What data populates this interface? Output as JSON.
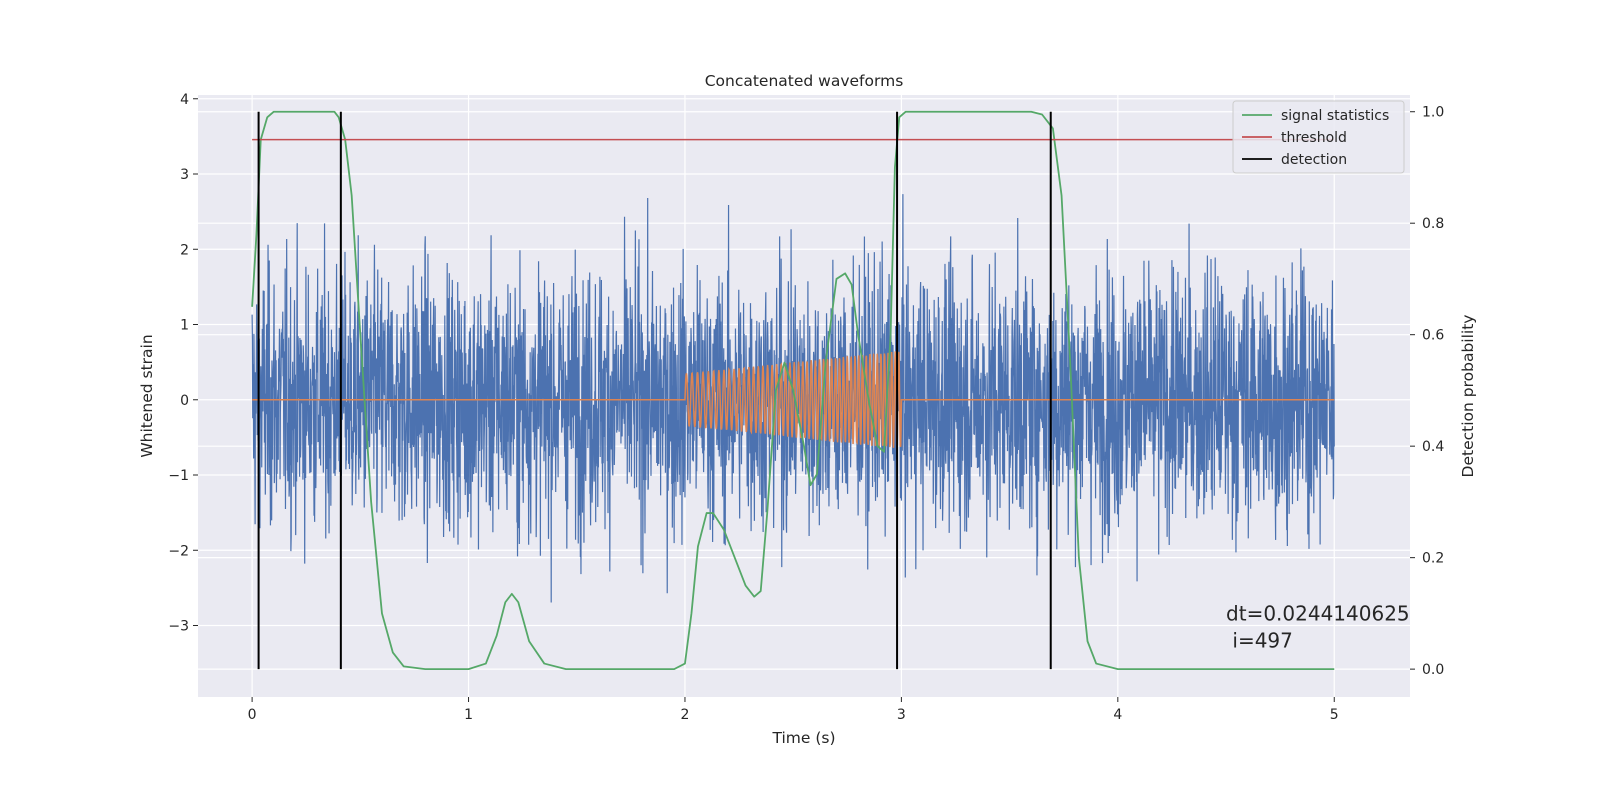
{
  "chart_data": {
    "type": "line",
    "title": "Concatenated waveforms",
    "xlabel": "Time (s)",
    "ylabel_left": "Whitened strain",
    "ylabel_right": "Detection probability",
    "xlim": [
      -0.25,
      5.35
    ],
    "ylim_left": [
      -3.95,
      4.05
    ],
    "ylim_right": [
      -0.05,
      1.03
    ],
    "x_ticks": [
      0,
      1,
      2,
      3,
      4,
      5
    ],
    "y_left_ticks": [
      -3,
      -2,
      -1,
      0,
      1,
      2,
      3,
      4
    ],
    "y_right_ticks": [
      0.0,
      0.2,
      0.4,
      0.6,
      0.8,
      1.0
    ],
    "y_left_tick_labels": [
      "−3",
      "−2",
      "−1",
      "0",
      "1",
      "2",
      "3",
      "4"
    ],
    "y_right_tick_labels": [
      "0.0",
      "0.2",
      "0.4",
      "0.6",
      "0.8",
      "1.0"
    ],
    "grid": true,
    "legend_position": "top-right",
    "style": {
      "background": "#EAEAF2",
      "grid_color": "#FFFFFF",
      "noise_color": "#4C72B0",
      "injection_color": "#DD8452",
      "signal_color": "#55A868",
      "threshold_color": "#C44E52",
      "detection_color": "#000000"
    },
    "series": [
      {
        "name": "",
        "role": "whitened-noise",
        "axis": "left",
        "x_range": [
          0,
          5
        ],
        "envelope_approx": [
          -3.6,
          3.7
        ]
      },
      {
        "name": "",
        "role": "injected-chirp",
        "axis": "left",
        "x": [
          0,
          2.0,
          2.0,
          2.25,
          2.5,
          2.75,
          3.0,
          3.0,
          5.0
        ],
        "amplitude": [
          0,
          0,
          0.35,
          0.42,
          0.5,
          0.58,
          0.65,
          0,
          0
        ]
      },
      {
        "name": "signal statistics",
        "axis": "right",
        "x": [
          0.0,
          0.02,
          0.04,
          0.07,
          0.1,
          0.15,
          0.2,
          0.3,
          0.38,
          0.4,
          0.43,
          0.46,
          0.5,
          0.55,
          0.6,
          0.65,
          0.7,
          0.8,
          0.9,
          1.0,
          1.08,
          1.13,
          1.17,
          1.2,
          1.23,
          1.28,
          1.35,
          1.45,
          1.6,
          1.8,
          1.95,
          2.0,
          2.03,
          2.06,
          2.1,
          2.13,
          2.18,
          2.23,
          2.28,
          2.32,
          2.35,
          2.38,
          2.42,
          2.46,
          2.5,
          2.55,
          2.58,
          2.61,
          2.65,
          2.7,
          2.74,
          2.77,
          2.8,
          2.85,
          2.89,
          2.92,
          2.95,
          2.97,
          2.99,
          3.02,
          3.05,
          3.1,
          3.3,
          3.5,
          3.6,
          3.65,
          3.7,
          3.74,
          3.78,
          3.82,
          3.86,
          3.9,
          4.0,
          4.5,
          5.0
        ],
        "y": [
          0.65,
          0.78,
          0.95,
          0.99,
          1.0,
          1.0,
          1.0,
          1.0,
          1.0,
          0.99,
          0.95,
          0.85,
          0.6,
          0.3,
          0.1,
          0.03,
          0.005,
          0.0,
          0.0,
          0.0,
          0.01,
          0.06,
          0.12,
          0.135,
          0.12,
          0.05,
          0.01,
          0.0,
          0.0,
          0.0,
          0.0,
          0.01,
          0.1,
          0.22,
          0.28,
          0.28,
          0.25,
          0.2,
          0.15,
          0.13,
          0.14,
          0.28,
          0.5,
          0.55,
          0.5,
          0.4,
          0.33,
          0.35,
          0.55,
          0.7,
          0.71,
          0.69,
          0.6,
          0.48,
          0.4,
          0.39,
          0.6,
          0.9,
          0.99,
          1.0,
          1.0,
          1.0,
          1.0,
          1.0,
          1.0,
          0.995,
          0.97,
          0.85,
          0.55,
          0.2,
          0.05,
          0.01,
          0.0,
          0.0,
          0.0
        ]
      },
      {
        "name": "threshold",
        "axis": "right",
        "x": [
          0,
          5
        ],
        "y": [
          0.95,
          0.95
        ]
      },
      {
        "name": "detection",
        "axis": "right",
        "type": "vlines",
        "x": [
          0.03,
          0.41,
          2.98,
          3.69
        ],
        "ymin": 0,
        "ymax": 1
      }
    ],
    "annotation": {
      "line1": "dt=0.0244140625",
      "line2": " i=497",
      "x_data": 4.5,
      "y_right_data": 0.1
    }
  }
}
